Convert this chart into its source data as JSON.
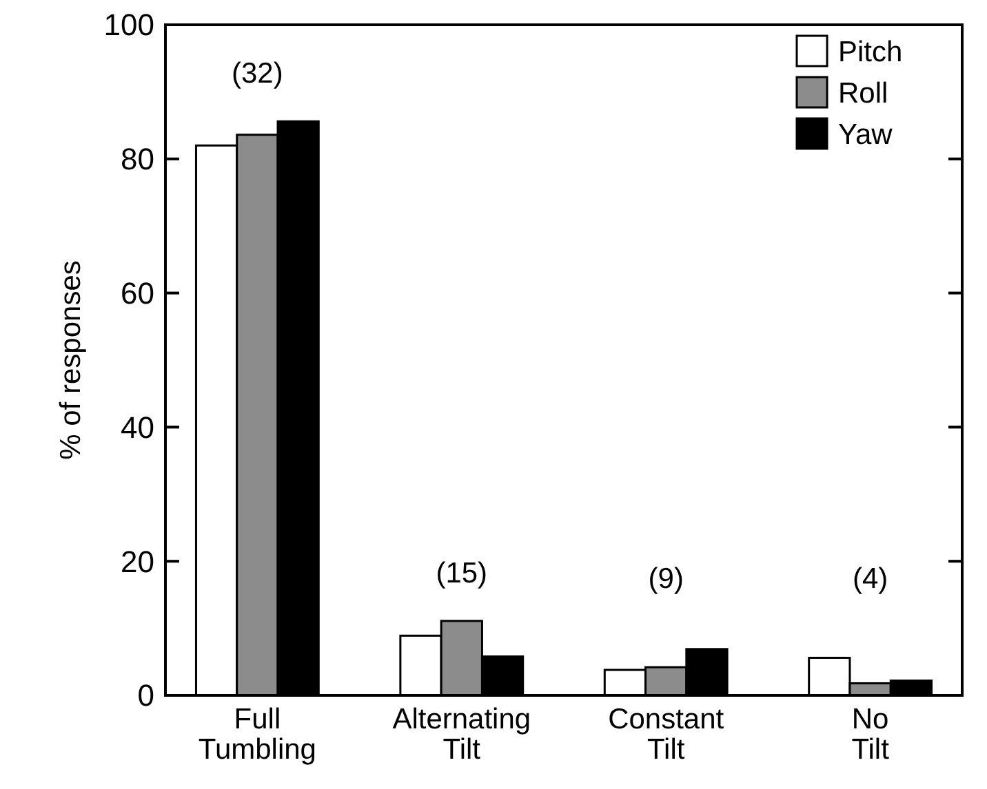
{
  "chart_data": {
    "type": "bar",
    "ylabel": "% of responses",
    "categories": [
      "Full\nTumbling",
      "Alternating\nTilt",
      "Constant\nTilt",
      "No\nTilt"
    ],
    "series": [
      {
        "name": "Pitch",
        "color": "#ffffff",
        "values": [
          82,
          8.9,
          3.8,
          5.6
        ]
      },
      {
        "name": "Roll",
        "color": "#8c8c8c",
        "values": [
          83.6,
          11.1,
          4.2,
          1.8
        ]
      },
      {
        "name": "Yaw",
        "color": "#000000",
        "values": [
          85.6,
          5.8,
          6.9,
          2.2
        ]
      }
    ],
    "ylim": [
      0,
      100
    ],
    "yticks": [
      0,
      20,
      40,
      60,
      80,
      100
    ],
    "grid": false,
    "legend": "top right",
    "annotations": [
      "(32)",
      "(15)",
      "(9)",
      "(4)"
    ]
  }
}
